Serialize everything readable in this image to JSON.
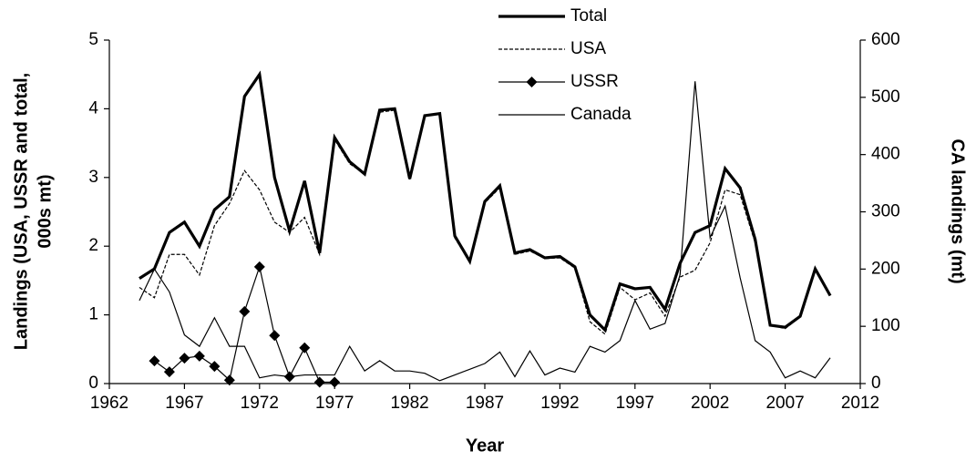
{
  "chart_data": {
    "type": "line",
    "x_label": "Year",
    "y_label": [
      "Landings (USA, USSR and total,",
      "000s mt)"
    ],
    "y2_label": "CA landings (mt)",
    "x": [
      1964,
      1965,
      1966,
      1967,
      1968,
      1969,
      1970,
      1971,
      1972,
      1973,
      1974,
      1975,
      1976,
      1977,
      1978,
      1979,
      1980,
      1981,
      1982,
      1983,
      1984,
      1985,
      1986,
      1987,
      1988,
      1989,
      1990,
      1991,
      1992,
      1993,
      1994,
      1995,
      1996,
      1997,
      1998,
      1999,
      2000,
      2001,
      2002,
      2003,
      2004,
      2005,
      2006,
      2007,
      2008,
      2009,
      2010
    ],
    "series": [
      {
        "name": "Total",
        "color": "#000000",
        "line_style": "bold",
        "values": [
          1.53,
          1.67,
          2.2,
          2.35,
          2.0,
          2.53,
          2.72,
          4.18,
          4.5,
          3.0,
          2.22,
          2.95,
          1.9,
          3.58,
          3.23,
          3.05,
          3.98,
          4.0,
          2.98,
          3.9,
          3.93,
          2.15,
          1.78,
          2.65,
          2.88,
          1.9,
          1.95,
          1.83,
          1.85,
          1.7,
          1.0,
          0.78,
          1.45,
          1.38,
          1.4,
          1.08,
          1.75,
          2.2,
          2.3,
          3.13,
          2.85,
          2.1,
          0.85,
          0.82,
          0.98,
          1.67,
          1.28
        ]
      },
      {
        "name": "USA",
        "color": "#000000",
        "line_style": "dashed",
        "values": [
          1.4,
          1.25,
          1.88,
          1.88,
          1.58,
          2.3,
          2.62,
          3.1,
          2.82,
          2.35,
          2.2,
          2.42,
          1.88,
          3.55,
          3.2,
          3.05,
          3.95,
          3.98,
          2.97,
          3.9,
          3.92,
          2.12,
          1.77,
          2.63,
          2.85,
          1.88,
          1.93,
          1.82,
          1.83,
          1.68,
          0.9,
          0.72,
          1.4,
          1.22,
          1.32,
          0.98,
          1.55,
          1.65,
          2.05,
          2.82,
          2.75,
          2.05,
          0.85,
          0.8,
          0.97,
          1.65,
          1.28
        ]
      },
      {
        "name": "USSR",
        "color": "#000000",
        "line_style": "solid",
        "marker": "diamond",
        "values": [
          null,
          0.33,
          0.17,
          0.37,
          0.4,
          0.25,
          0.05,
          1.05,
          1.7,
          0.7,
          0.1,
          0.52,
          0.02,
          0.02,
          null,
          null,
          null,
          null,
          null,
          null,
          null,
          null,
          null,
          null,
          null,
          null,
          null,
          null,
          null,
          null,
          null,
          null,
          null,
          null,
          null,
          null,
          null,
          null,
          null,
          null,
          null,
          null,
          null,
          null,
          null,
          null,
          null
        ]
      },
      {
        "name": "Canada",
        "color": "#000000",
        "line_style": "solid",
        "axis": "y2",
        "values": [
          145,
          200,
          160,
          85,
          65,
          115,
          65,
          65,
          10,
          15,
          12,
          15,
          15,
          15,
          65,
          22,
          40,
          22,
          22,
          18,
          5,
          15,
          25,
          35,
          55,
          12,
          57,
          15,
          27,
          20,
          65,
          55,
          75,
          145,
          95,
          105,
          190,
          528,
          255,
          310,
          185,
          75,
          55,
          10,
          22,
          10,
          45
        ]
      }
    ],
    "xlim": [
      1962,
      2012
    ],
    "xticks": [
      1962,
      1967,
      1972,
      1977,
      1982,
      1987,
      1992,
      1997,
      2002,
      2007,
      2012
    ],
    "ylim": [
      0,
      5
    ],
    "yticks": [
      0,
      1,
      2,
      3,
      4,
      5
    ],
    "y2lim": [
      0,
      600
    ],
    "y2ticks": [
      0,
      100,
      200,
      300,
      400,
      500,
      600
    ],
    "grid": false,
    "legend": "top"
  }
}
